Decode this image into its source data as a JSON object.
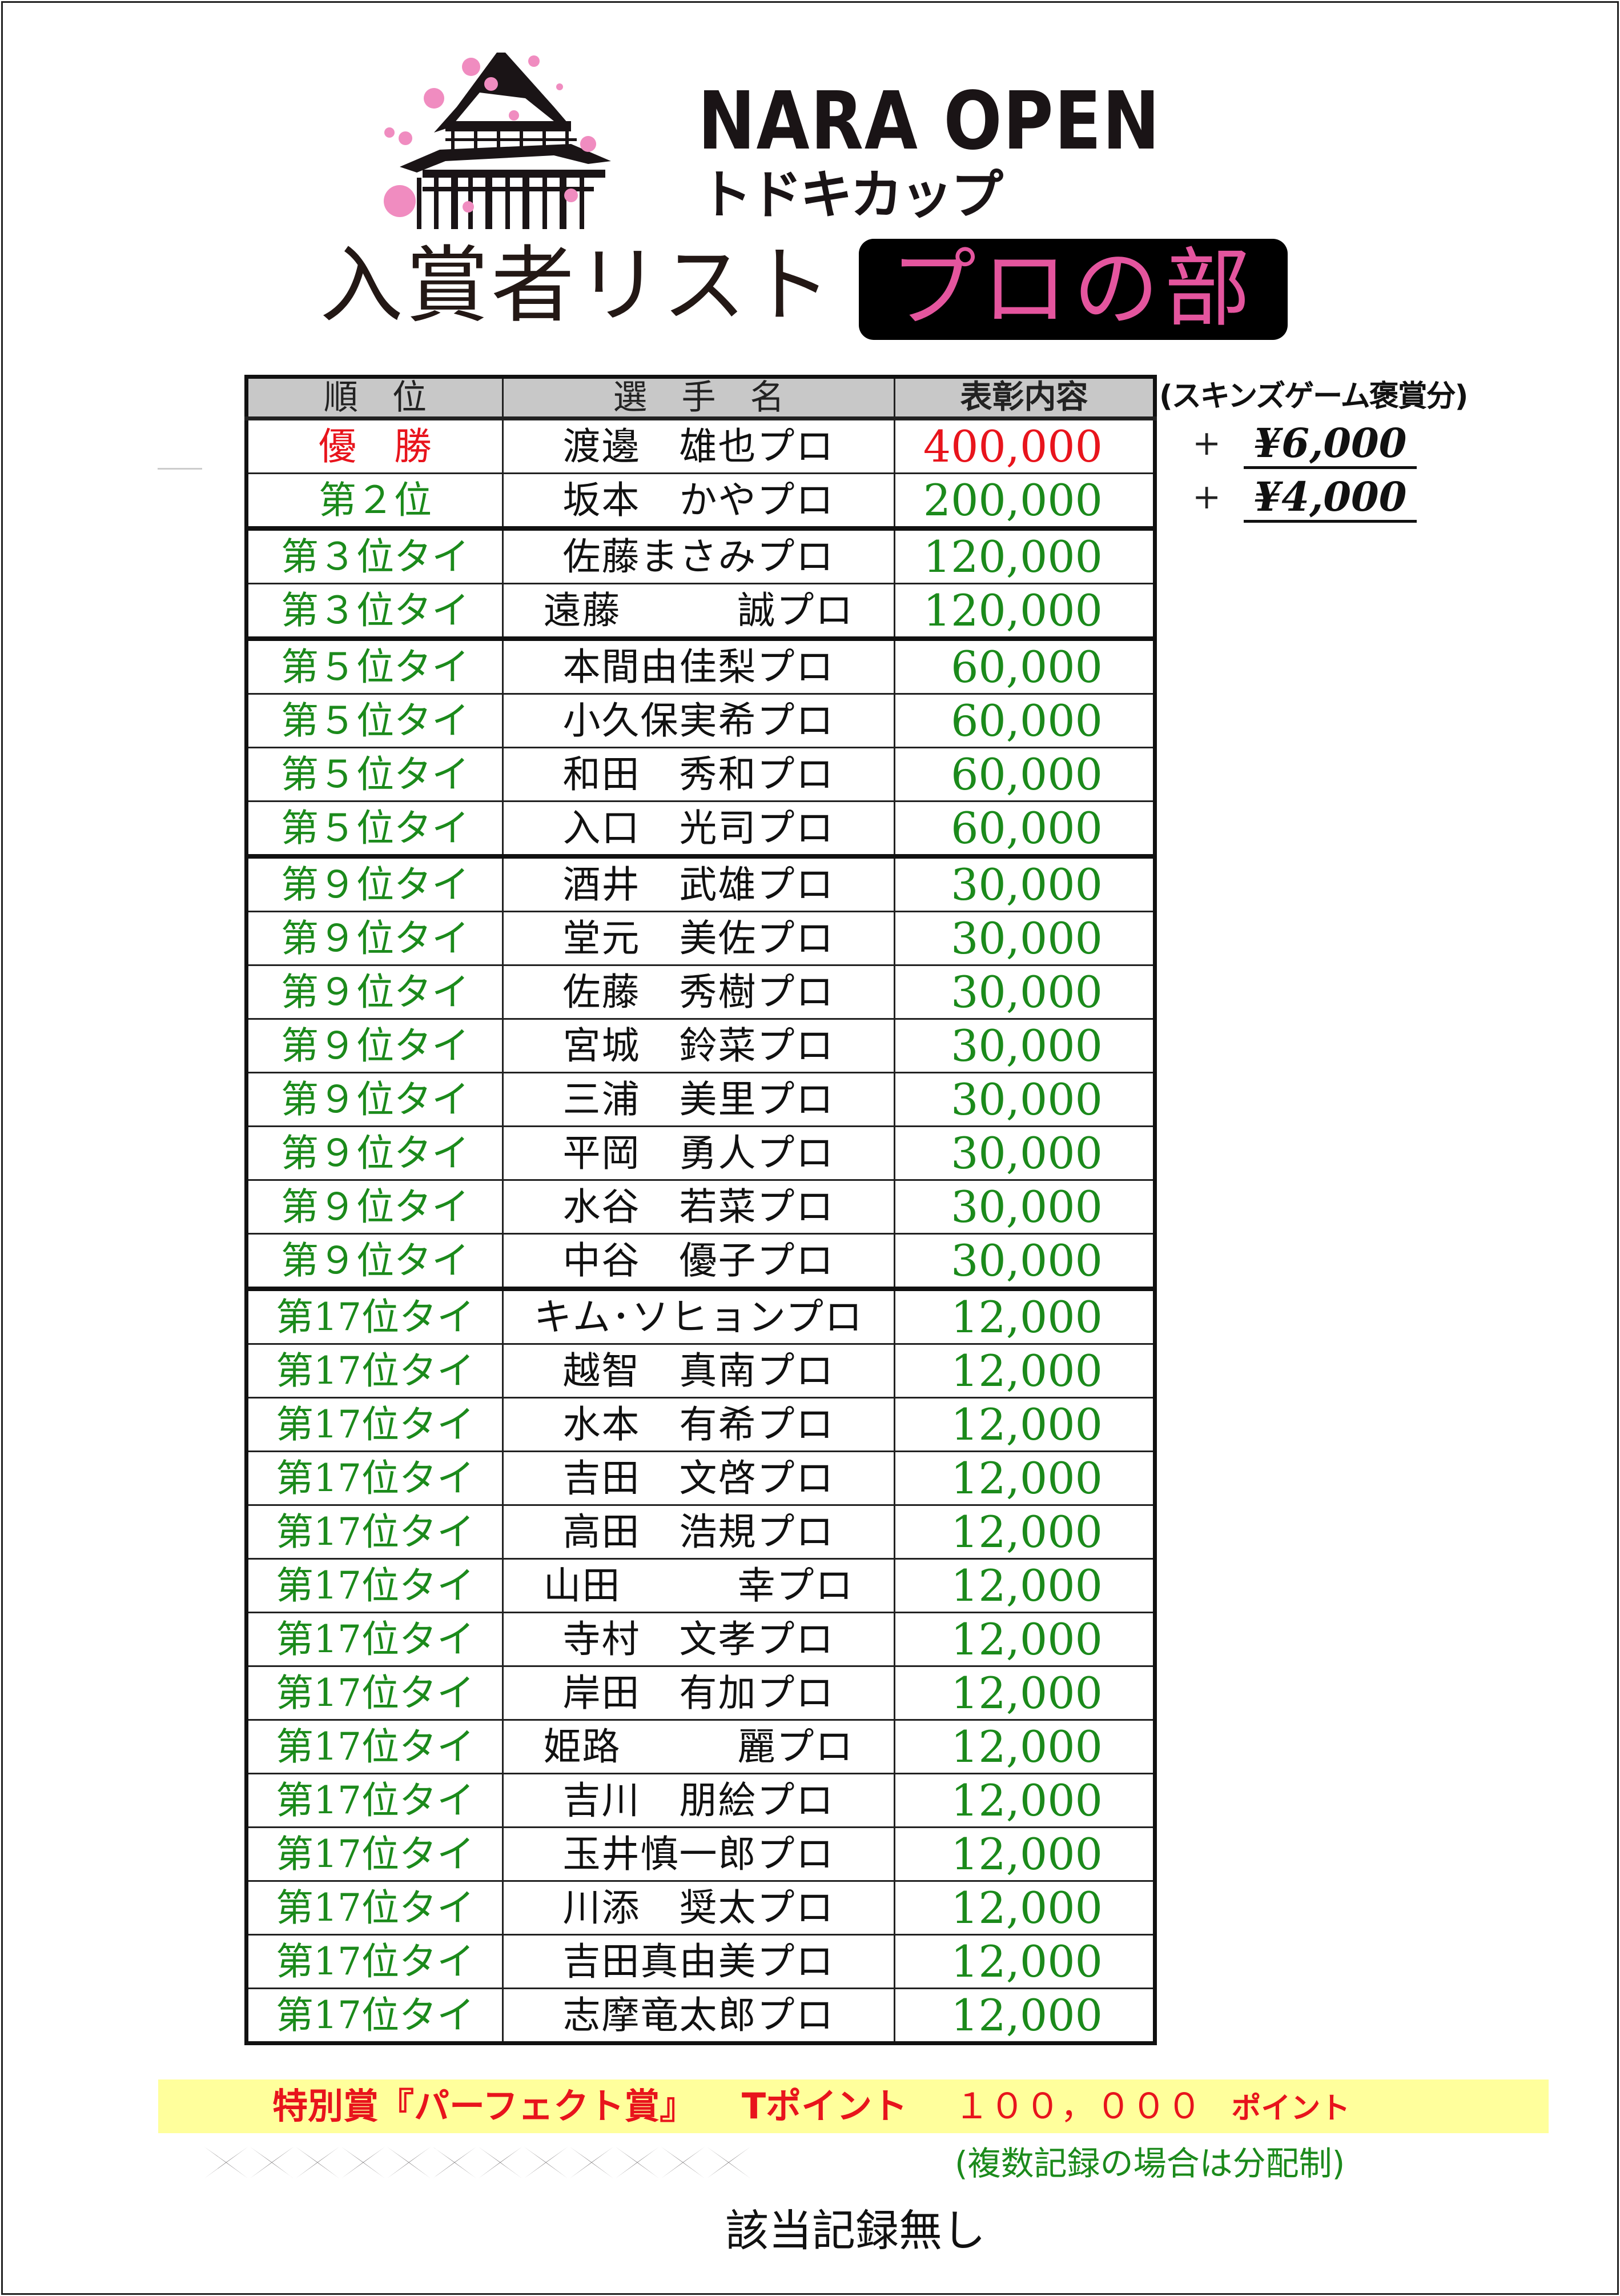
{
  "logo": {
    "title": "NARA OPEN",
    "subtitle": "トドキカップ",
    "icon": "temple-with-cherry-blossoms"
  },
  "heading": {
    "title": "入賞者リスト",
    "division": "プロの部"
  },
  "colors": {
    "winner": "#e8141c",
    "placed": "#1b8a1b",
    "division_text": "#e4559e",
    "header_fill": "#c8c8c8",
    "highlight_band": "#ffff9c"
  },
  "table": {
    "headers": {
      "rank": "順　位",
      "name": "選　手　名",
      "prize": "表彰内容"
    },
    "rows": [
      {
        "rank": "優　勝",
        "name": "渡邊　雄也プロ",
        "prize": "400,000",
        "color": "#e8141c"
      },
      {
        "rank": "第２位",
        "name": "坂本　かやプロ",
        "prize": "200,000",
        "color": "#1b8a1b"
      },
      {
        "rank": "第３位タイ",
        "name": "佐藤まさみプロ",
        "prize": "120,000",
        "color": "#1b8a1b"
      },
      {
        "rank": "第３位タイ",
        "name": "遠藤　　　誠プロ",
        "prize": "120,000",
        "color": "#1b8a1b"
      },
      {
        "rank": "第５位タイ",
        "name": "本間由佳梨プロ",
        "prize": "60,000",
        "color": "#1b8a1b"
      },
      {
        "rank": "第５位タイ",
        "name": "小久保実希プロ",
        "prize": "60,000",
        "color": "#1b8a1b"
      },
      {
        "rank": "第５位タイ",
        "name": "和田　秀和プロ",
        "prize": "60,000",
        "color": "#1b8a1b"
      },
      {
        "rank": "第５位タイ",
        "name": "入口　光司プロ",
        "prize": "60,000",
        "color": "#1b8a1b"
      },
      {
        "rank": "第９位タイ",
        "name": "酒井　武雄プロ",
        "prize": "30,000",
        "color": "#1b8a1b"
      },
      {
        "rank": "第９位タイ",
        "name": "堂元　美佐プロ",
        "prize": "30,000",
        "color": "#1b8a1b"
      },
      {
        "rank": "第９位タイ",
        "name": "佐藤　秀樹プロ",
        "prize": "30,000",
        "color": "#1b8a1b"
      },
      {
        "rank": "第９位タイ",
        "name": "宮城　鈴菜プロ",
        "prize": "30,000",
        "color": "#1b8a1b"
      },
      {
        "rank": "第９位タイ",
        "name": "三浦　美里プロ",
        "prize": "30,000",
        "color": "#1b8a1b"
      },
      {
        "rank": "第９位タイ",
        "name": "平岡　勇人プロ",
        "prize": "30,000",
        "color": "#1b8a1b"
      },
      {
        "rank": "第９位タイ",
        "name": "水谷　若菜プロ",
        "prize": "30,000",
        "color": "#1b8a1b"
      },
      {
        "rank": "第９位タイ",
        "name": "中谷　優子プロ",
        "prize": "30,000",
        "color": "#1b8a1b"
      },
      {
        "rank": "第17位タイ",
        "name": "キム･ソヒョンプロ",
        "prize": "12,000",
        "color": "#1b8a1b"
      },
      {
        "rank": "第17位タイ",
        "name": "越智　真南プロ",
        "prize": "12,000",
        "color": "#1b8a1b"
      },
      {
        "rank": "第17位タイ",
        "name": "水本　有希プロ",
        "prize": "12,000",
        "color": "#1b8a1b"
      },
      {
        "rank": "第17位タイ",
        "name": "吉田　文啓プロ",
        "prize": "12,000",
        "color": "#1b8a1b"
      },
      {
        "rank": "第17位タイ",
        "name": "高田　浩規プロ",
        "prize": "12,000",
        "color": "#1b8a1b"
      },
      {
        "rank": "第17位タイ",
        "name": "山田　　　幸プロ",
        "prize": "12,000",
        "color": "#1b8a1b"
      },
      {
        "rank": "第17位タイ",
        "name": "寺村　文孝プロ",
        "prize": "12,000",
        "color": "#1b8a1b"
      },
      {
        "rank": "第17位タイ",
        "name": "岸田　有加プロ",
        "prize": "12,000",
        "color": "#1b8a1b"
      },
      {
        "rank": "第17位タイ",
        "name": "姫路　　　麗プロ",
        "prize": "12,000",
        "color": "#1b8a1b"
      },
      {
        "rank": "第17位タイ",
        "name": "吉川　朋絵プロ",
        "prize": "12,000",
        "color": "#1b8a1b"
      },
      {
        "rank": "第17位タイ",
        "name": "玉井慎一郎プロ",
        "prize": "12,000",
        "color": "#1b8a1b"
      },
      {
        "rank": "第17位タイ",
        "name": "川添　奨太プロ",
        "prize": "12,000",
        "color": "#1b8a1b"
      },
      {
        "rank": "第17位タイ",
        "name": "吉田真由美プロ",
        "prize": "12,000",
        "color": "#1b8a1b"
      },
      {
        "rank": "第17位タイ",
        "name": "志摩竜太郎プロ",
        "prize": "12,000",
        "color": "#1b8a1b"
      }
    ]
  },
  "skins": {
    "label": "(スキンズゲーム褒賞分)",
    "bonuses": [
      {
        "sign": "+",
        "amount": "¥6,000"
      },
      {
        "sign": "+",
        "amount": "¥4,000"
      }
    ]
  },
  "special_award": {
    "title": "特別賞『パーフェクト賞』",
    "reward_label": "Tポイント",
    "reward_amount": "１００，０００",
    "reward_unit": "ポイント",
    "note": "(複数記録の場合は分配制)",
    "result": "該当記録無し"
  }
}
